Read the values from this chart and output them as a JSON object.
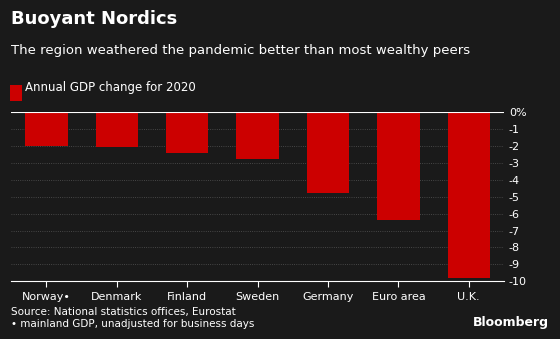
{
  "title": "Buoyant Nordics",
  "subtitle": "The region weathered the pandemic better than most wealthy peers",
  "legend_label": "Annual GDP change for 2020",
  "categories": [
    "Norway•",
    "Denmark",
    "Finland",
    "Sweden",
    "Germany",
    "Euro area",
    "U.K."
  ],
  "values": [
    -2.0,
    -2.1,
    -2.4,
    -2.8,
    -4.8,
    -6.4,
    -9.8
  ],
  "bar_color": "#cc0000",
  "background_color": "#1a1a1a",
  "text_color": "#ffffff",
  "grid_color": "#555555",
  "ylim": [
    -10,
    0
  ],
  "yticks": [
    0,
    -1,
    -2,
    -3,
    -4,
    -5,
    -6,
    -7,
    -8,
    -9,
    -10
  ],
  "source_text": "Source: National statistics offices, Eurostat\n• mainland GDP, unadjusted for business days",
  "bloomberg_text": "Bloomberg",
  "title_fontsize": 13,
  "subtitle_fontsize": 9.5,
  "tick_fontsize": 8,
  "legend_fontsize": 8.5,
  "source_fontsize": 7.5
}
